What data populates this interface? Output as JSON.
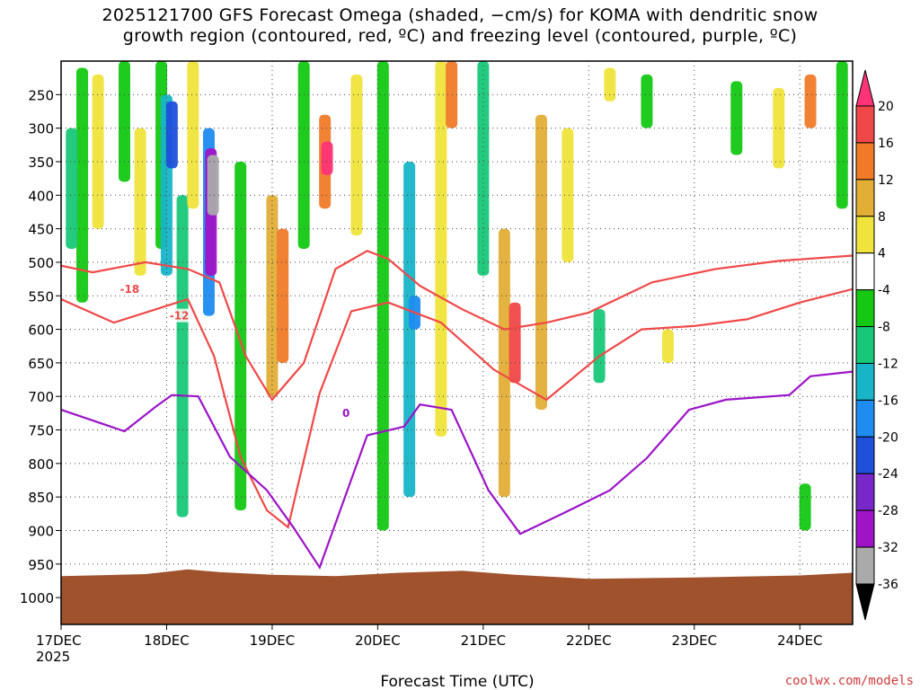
{
  "title": {
    "line1": "2025121700 GFS Forecast Omega (shaded, −cm/s) for KOMA with dendritic snow",
    "line2": "growth region (contoured, red, ºC) and freezing level (contoured, purple, ºC)"
  },
  "credit": "coolwx.com/models",
  "chart_data": {
    "type": "heatmap",
    "title": "2025121700 GFS Forecast Omega (shaded, −cm/s) for KOMA with dendritic snow growth region (contoured, red, ºC) and freezing level (contoured, purple, ºC)",
    "xlabel": "Forecast Time (UTC)",
    "ylabel": "",
    "x_ticks": [
      {
        "label": "17DEC",
        "sub": "2025",
        "day": 0
      },
      {
        "label": "18DEC",
        "sub": "",
        "day": 1
      },
      {
        "label": "19DEC",
        "sub": "",
        "day": 2
      },
      {
        "label": "20DEC",
        "sub": "",
        "day": 3
      },
      {
        "label": "21DEC",
        "sub": "",
        "day": 4
      },
      {
        "label": "22DEC",
        "sub": "",
        "day": 5
      },
      {
        "label": "23DEC",
        "sub": "",
        "day": 6
      },
      {
        "label": "24DEC",
        "sub": "",
        "day": 7
      }
    ],
    "xlim_days": [
      0,
      7.5
    ],
    "y_ticks": [
      250,
      300,
      350,
      400,
      450,
      500,
      550,
      600,
      650,
      700,
      750,
      800,
      850,
      900,
      950,
      1000
    ],
    "ylim_hPa": [
      200,
      1040
    ],
    "colorbar": {
      "levels": [
        20,
        16,
        12,
        8,
        4,
        -4,
        -8,
        -12,
        -16,
        -20,
        -24,
        -28,
        -32,
        -36
      ],
      "colors": [
        "#ff3377",
        "#f04848",
        "#f07a28",
        "#e2ae36",
        "#f0e43c",
        "#ffffff",
        "#14c814",
        "#18c878",
        "#18b4c8",
        "#1e8cf0",
        "#1e50dc",
        "#7828c8",
        "#a014c8",
        "#aaaaaa",
        "#000000"
      ]
    },
    "colors": {
      "dendritic_contour": "#f04848",
      "freezing_contour": "#9b14c8",
      "terrain": "#a0522d"
    },
    "omega_cells": [
      {
        "day": 0.2,
        "p0": 210,
        "p1": 560,
        "v": -8
      },
      {
        "day": 0.1,
        "p0": 300,
        "p1": 480,
        "v": -12
      },
      {
        "day": 0.35,
        "p0": 220,
        "p1": 450,
        "v": 4
      },
      {
        "day": 0.6,
        "p0": 200,
        "p1": 380,
        "v": -8
      },
      {
        "day": 0.75,
        "p0": 300,
        "p1": 520,
        "v": 4
      },
      {
        "day": 0.95,
        "p0": 200,
        "p1": 480,
        "v": -8
      },
      {
        "day": 1.0,
        "p0": 250,
        "p1": 520,
        "v": -16
      },
      {
        "day": 1.05,
        "p0": 260,
        "p1": 360,
        "v": -24
      },
      {
        "day": 1.15,
        "p0": 400,
        "p1": 880,
        "v": -12
      },
      {
        "day": 1.25,
        "p0": 200,
        "p1": 420,
        "v": 4
      },
      {
        "day": 1.4,
        "p0": 300,
        "p1": 580,
        "v": -20
      },
      {
        "day": 1.42,
        "p0": 330,
        "p1": 520,
        "v": -32
      },
      {
        "day": 1.44,
        "p0": 340,
        "p1": 430,
        "v": -36
      },
      {
        "day": 1.7,
        "p0": 350,
        "p1": 870,
        "v": -8
      },
      {
        "day": 2.0,
        "p0": 400,
        "p1": 700,
        "v": 8
      },
      {
        "day": 2.1,
        "p0": 450,
        "p1": 650,
        "v": 12
      },
      {
        "day": 2.3,
        "p0": 200,
        "p1": 480,
        "v": -8
      },
      {
        "day": 2.5,
        "p0": 280,
        "p1": 420,
        "v": 12
      },
      {
        "day": 2.52,
        "p0": 320,
        "p1": 370,
        "v": 20
      },
      {
        "day": 2.8,
        "p0": 220,
        "p1": 460,
        "v": 4
      },
      {
        "day": 3.05,
        "p0": 200,
        "p1": 900,
        "v": -8
      },
      {
        "day": 3.3,
        "p0": 350,
        "p1": 850,
        "v": -16
      },
      {
        "day": 3.35,
        "p0": 550,
        "p1": 600,
        "v": -20
      },
      {
        "day": 3.6,
        "p0": 200,
        "p1": 760,
        "v": 4
      },
      {
        "day": 3.7,
        "p0": 200,
        "p1": 300,
        "v": 12
      },
      {
        "day": 4.0,
        "p0": 200,
        "p1": 520,
        "v": -12
      },
      {
        "day": 4.2,
        "p0": 450,
        "p1": 850,
        "v": 8
      },
      {
        "day": 4.3,
        "p0": 560,
        "p1": 680,
        "v": 16
      },
      {
        "day": 4.55,
        "p0": 280,
        "p1": 720,
        "v": 8
      },
      {
        "day": 4.8,
        "p0": 300,
        "p1": 500,
        "v": 4
      },
      {
        "day": 5.1,
        "p0": 570,
        "p1": 680,
        "v": -12
      },
      {
        "day": 5.2,
        "p0": 210,
        "p1": 260,
        "v": 4
      },
      {
        "day": 5.55,
        "p0": 220,
        "p1": 300,
        "v": -8
      },
      {
        "day": 5.75,
        "p0": 600,
        "p1": 650,
        "v": 4
      },
      {
        "day": 6.4,
        "p0": 230,
        "p1": 340,
        "v": -8
      },
      {
        "day": 6.8,
        "p0": 240,
        "p1": 360,
        "v": 4
      },
      {
        "day": 7.1,
        "p0": 220,
        "p1": 300,
        "v": 12
      },
      {
        "day": 7.4,
        "p0": 200,
        "p1": 420,
        "v": -8
      },
      {
        "day": 7.05,
        "p0": 830,
        "p1": 900,
        "v": -8
      }
    ],
    "contours": [
      {
        "name": "-18",
        "kind": "dendritic",
        "label_day": 0.65,
        "label_p": 540,
        "points": [
          [
            0,
            505
          ],
          [
            0.3,
            515
          ],
          [
            0.8,
            500
          ],
          [
            1.2,
            510
          ],
          [
            1.5,
            530
          ],
          [
            1.75,
            640
          ],
          [
            2.0,
            705
          ],
          [
            2.3,
            650
          ],
          [
            2.6,
            510
          ],
          [
            2.9,
            483
          ],
          [
            3.1,
            495
          ],
          [
            3.4,
            535
          ],
          [
            3.8,
            570
          ],
          [
            4.2,
            600
          ],
          [
            4.6,
            590
          ],
          [
            5.0,
            575
          ],
          [
            5.6,
            530
          ],
          [
            6.2,
            510
          ],
          [
            6.8,
            498
          ],
          [
            7.5,
            490
          ]
        ]
      },
      {
        "name": "-12",
        "kind": "dendritic",
        "label_day": 1.12,
        "label_p": 580,
        "points": [
          [
            0,
            555
          ],
          [
            0.5,
            590
          ],
          [
            1.0,
            565
          ],
          [
            1.2,
            555
          ],
          [
            1.45,
            640
          ],
          [
            1.7,
            790
          ],
          [
            1.95,
            870
          ],
          [
            2.15,
            895
          ],
          [
            2.45,
            695
          ],
          [
            2.75,
            573
          ],
          [
            3.1,
            560
          ],
          [
            3.6,
            590
          ],
          [
            4.1,
            660
          ],
          [
            4.6,
            705
          ],
          [
            5.1,
            640
          ],
          [
            5.5,
            600
          ],
          [
            6.0,
            595
          ],
          [
            6.5,
            585
          ],
          [
            7.0,
            560
          ],
          [
            7.5,
            540
          ]
        ]
      },
      {
        "name": "0",
        "kind": "freezing",
        "label_day": 2.7,
        "label_p": 725,
        "points": [
          [
            0,
            720
          ],
          [
            0.6,
            752
          ],
          [
            0.9,
            715
          ],
          [
            1.05,
            698
          ],
          [
            1.3,
            700
          ],
          [
            1.6,
            790
          ],
          [
            1.95,
            840
          ],
          [
            2.2,
            895
          ],
          [
            2.45,
            955
          ],
          [
            2.9,
            758
          ],
          [
            3.25,
            745
          ],
          [
            3.4,
            712
          ],
          [
            3.7,
            720
          ],
          [
            4.05,
            840
          ],
          [
            4.35,
            905
          ],
          [
            4.75,
            875
          ],
          [
            5.2,
            840
          ],
          [
            5.55,
            792
          ],
          [
            5.95,
            720
          ],
          [
            6.3,
            705
          ],
          [
            6.9,
            698
          ],
          [
            7.1,
            670
          ],
          [
            7.5,
            663
          ]
        ]
      }
    ]
  }
}
